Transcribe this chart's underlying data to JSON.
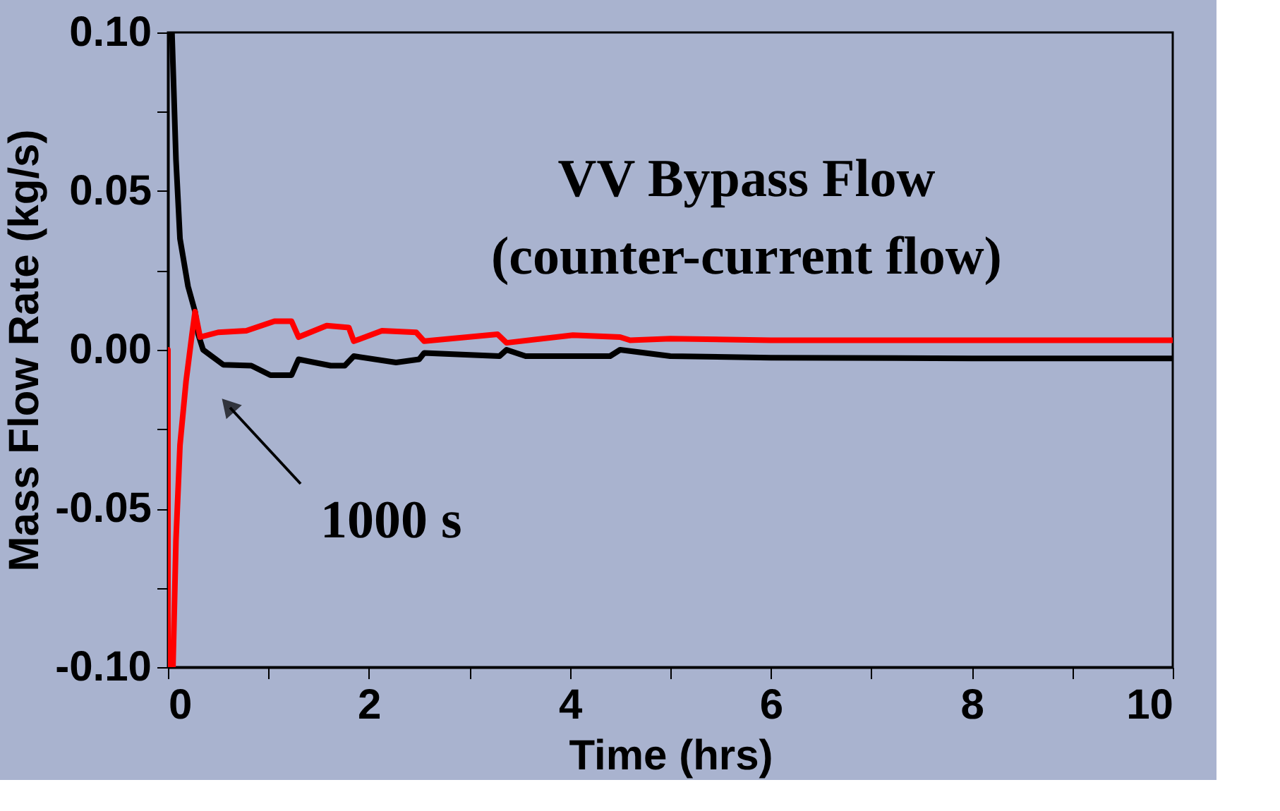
{
  "chart_data": {
    "type": "line",
    "title": "VV Bypass Flow",
    "subtitle": "(counter-current flow)",
    "xlabel": "Time (hrs)",
    "ylabel": "Mass Flow Rate (kg/s)",
    "xlim": [
      0,
      10
    ],
    "ylim": [
      -0.1,
      0.1
    ],
    "xticks": [
      0,
      {
        "value": 1,
        "label": null
      },
      2,
      {
        "value": 3,
        "label": null
      },
      4,
      {
        "value": 5,
        "label": null
      },
      6,
      {
        "value": 7,
        "label": null
      },
      8,
      {
        "value": 9,
        "label": null
      },
      10
    ],
    "yticks": [
      {
        "value": -0.1,
        "label": "-0.10"
      },
      {
        "value": -0.075,
        "label": null
      },
      {
        "value": -0.05,
        "label": "-0.05"
      },
      {
        "value": -0.025,
        "label": null
      },
      {
        "value": 0,
        "label": "0.00"
      },
      {
        "value": 0.025,
        "label": null
      },
      {
        "value": 0.05,
        "label": "0.05"
      },
      {
        "value": 0.075,
        "label": null
      },
      {
        "value": 0.1,
        "label": "0.10"
      }
    ],
    "grid": false,
    "annotations": [
      "1000 s"
    ],
    "series": [
      {
        "color": "#000000",
        "x": [
          0.04,
          0.08,
          0.12,
          0.2,
          0.27,
          0.3,
          0.35,
          0.55,
          0.83,
          1.02,
          1.23,
          1.3,
          1.62,
          1.76,
          1.85,
          2.27,
          2.5,
          2.55,
          3.3,
          3.37,
          3.56,
          4.03,
          4.4,
          4.5,
          5.0,
          6.0,
          8.0,
          10.0
        ],
        "values": [
          0.1,
          0.06,
          0.035,
          0.02,
          0.012,
          0.005,
          0.0,
          -0.0047,
          -0.005,
          -0.008,
          -0.008,
          -0.003,
          -0.005,
          -0.005,
          -0.002,
          -0.004,
          -0.003,
          -0.001,
          -0.002,
          0.0,
          -0.002,
          -0.002,
          -0.002,
          0.0,
          -0.002,
          -0.0025,
          -0.0027,
          -0.0027
        ]
      },
      {
        "color": "#ff0000",
        "x": [
          0.0,
          0.0,
          0.05,
          0.08,
          0.12,
          0.18,
          0.24,
          0.27,
          0.32,
          0.5,
          0.78,
          1.06,
          1.23,
          1.3,
          1.58,
          1.8,
          1.85,
          2.13,
          2.47,
          2.55,
          3.28,
          3.37,
          4.03,
          4.5,
          4.6,
          5.0,
          6.0,
          8.0,
          10.0
        ],
        "values": [
          0.0,
          -0.1,
          -0.1,
          -0.06,
          -0.03,
          -0.01,
          0.005,
          0.012,
          0.004,
          0.0055,
          0.006,
          0.009,
          0.009,
          0.004,
          0.0076,
          0.007,
          0.0027,
          0.006,
          0.0055,
          0.0027,
          0.0049,
          0.0022,
          0.0046,
          0.004,
          0.003,
          0.0035,
          0.003,
          0.003,
          0.003
        ]
      }
    ]
  }
}
